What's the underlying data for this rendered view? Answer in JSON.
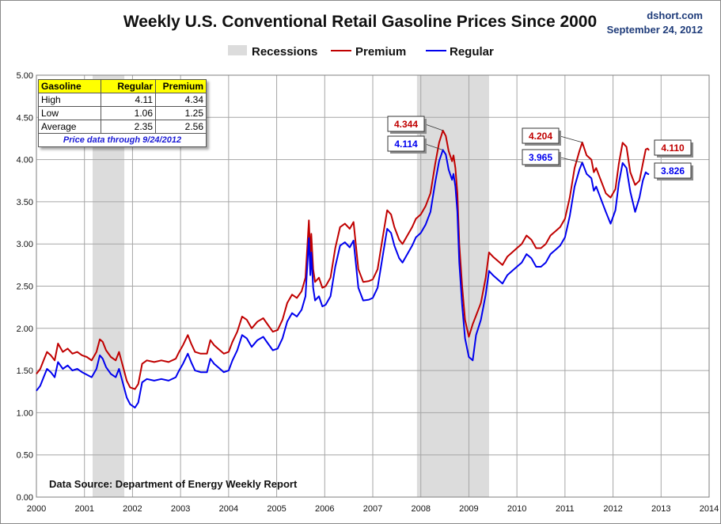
{
  "title": "Weekly U.S. Conventional Retail Gasoline Prices Since 2000",
  "brand": {
    "site": "dshort.com",
    "date": "September 24, 2012"
  },
  "legend": {
    "recessions": "Recessions",
    "premium": "Premium",
    "regular": "Regular"
  },
  "source": "Data Source: Department of Energy Weekly Report",
  "colors": {
    "premium": "#c00000",
    "regular": "#0000ee",
    "recession": "#dcdcdc",
    "grid": "#a6a6a6"
  },
  "stats_table": {
    "headers": [
      "Gasoline",
      "Regular",
      "Premium"
    ],
    "rows": [
      {
        "label": "High",
        "regular": "4.11",
        "premium": "4.34"
      },
      {
        "label": "Low",
        "regular": "1.06",
        "premium": "1.25"
      },
      {
        "label": "Average",
        "regular": "2.35",
        "premium": "2.56"
      }
    ],
    "note": "Price data through 9/24/2012"
  },
  "chart_data": {
    "type": "line",
    "title": "Weekly U.S. Conventional Retail Gasoline Prices Since 2000",
    "xlabel": "",
    "ylabel": "",
    "xlim": [
      2000,
      2014
    ],
    "ylim": [
      0,
      5
    ],
    "x_ticks": [
      "2000",
      "2001",
      "2002",
      "2003",
      "2004",
      "2005",
      "2006",
      "2007",
      "2008",
      "2009",
      "2010",
      "2011",
      "2012",
      "2013",
      "2014"
    ],
    "y_ticks": [
      "0.00",
      "0.50",
      "1.00",
      "1.50",
      "2.00",
      "2.50",
      "3.00",
      "3.50",
      "4.00",
      "4.50",
      "5.00"
    ],
    "grid": true,
    "legend_position": "top-center",
    "recessions": [
      [
        2001.17,
        2001.83
      ],
      [
        2007.92,
        2009.42
      ]
    ],
    "series": [
      {
        "name": "Premium",
        "x": [
          2000,
          2000.08,
          2000.15,
          2000.22,
          2000.3,
          2000.38,
          2000.45,
          2000.55,
          2000.65,
          2000.75,
          2000.85,
          2000.95,
          2001.05,
          2001.15,
          2001.25,
          2001.32,
          2001.38,
          2001.45,
          2001.55,
          2001.65,
          2001.72,
          2001.8,
          2001.88,
          2001.95,
          2002.05,
          2002.12,
          2002.2,
          2002.3,
          2002.45,
          2002.6,
          2002.75,
          2002.9,
          2002.97,
          2003.05,
          2003.15,
          2003.22,
          2003.3,
          2003.42,
          2003.55,
          2003.62,
          2003.7,
          2003.8,
          2003.9,
          2004,
          2004.08,
          2004.18,
          2004.28,
          2004.38,
          2004.48,
          2004.6,
          2004.72,
          2004.82,
          2004.92,
          2005.02,
          2005.12,
          2005.22,
          2005.32,
          2005.42,
          2005.52,
          2005.6,
          2005.67,
          2005.7,
          2005.72,
          2005.76,
          2005.8,
          2005.88,
          2005.95,
          2006.02,
          2006.12,
          2006.22,
          2006.32,
          2006.42,
          2006.52,
          2006.6,
          2006.7,
          2006.8,
          2006.92,
          2007,
          2007.1,
          2007.2,
          2007.3,
          2007.38,
          2007.45,
          2007.55,
          2007.62,
          2007.72,
          2007.82,
          2007.9,
          2008,
          2008.1,
          2008.2,
          2008.3,
          2008.38,
          2008.46,
          2008.52,
          2008.58,
          2008.65,
          2008.68,
          2008.72,
          2008.76,
          2008.8,
          2008.86,
          2008.92,
          2009,
          2009.08,
          2009.15,
          2009.25,
          2009.35,
          2009.42,
          2009.5,
          2009.6,
          2009.7,
          2009.8,
          2009.9,
          2010,
          2010.1,
          2010.2,
          2010.3,
          2010.4,
          2010.5,
          2010.6,
          2010.7,
          2010.8,
          2010.9,
          2011,
          2011.1,
          2011.2,
          2011.3,
          2011.36,
          2011.45,
          2011.55,
          2011.6,
          2011.65,
          2011.75,
          2011.85,
          2011.95,
          2012.05,
          2012.12,
          2012.2,
          2012.28,
          2012.36,
          2012.46,
          2012.55,
          2012.62,
          2012.68,
          2012.72,
          2012.75
        ],
        "values": [
          1.46,
          1.52,
          1.62,
          1.72,
          1.68,
          1.62,
          1.82,
          1.72,
          1.76,
          1.7,
          1.72,
          1.68,
          1.66,
          1.62,
          1.72,
          1.87,
          1.84,
          1.74,
          1.66,
          1.62,
          1.72,
          1.55,
          1.38,
          1.3,
          1.28,
          1.34,
          1.58,
          1.62,
          1.6,
          1.62,
          1.6,
          1.64,
          1.72,
          1.8,
          1.92,
          1.82,
          1.72,
          1.7,
          1.7,
          1.86,
          1.8,
          1.75,
          1.7,
          1.72,
          1.84,
          1.96,
          2.14,
          2.1,
          2.0,
          2.08,
          2.12,
          2.04,
          1.96,
          1.98,
          2.1,
          2.3,
          2.4,
          2.36,
          2.44,
          2.6,
          3.28,
          2.85,
          3.12,
          2.7,
          2.55,
          2.6,
          2.48,
          2.5,
          2.6,
          2.95,
          3.2,
          3.24,
          3.18,
          3.26,
          2.7,
          2.55,
          2.56,
          2.58,
          2.7,
          3.05,
          3.4,
          3.35,
          3.2,
          3.05,
          3.0,
          3.1,
          3.2,
          3.3,
          3.35,
          3.45,
          3.6,
          3.95,
          4.2,
          4.344,
          4.28,
          4.1,
          3.98,
          4.05,
          3.9,
          3.6,
          3.0,
          2.5,
          2.1,
          1.9,
          2.05,
          2.15,
          2.3,
          2.6,
          2.9,
          2.85,
          2.8,
          2.75,
          2.85,
          2.9,
          2.95,
          3.0,
          3.1,
          3.05,
          2.95,
          2.95,
          3.0,
          3.1,
          3.15,
          3.2,
          3.3,
          3.55,
          3.9,
          4.1,
          4.204,
          4.05,
          4.0,
          3.85,
          3.9,
          3.75,
          3.6,
          3.55,
          3.65,
          3.95,
          4.2,
          4.15,
          3.85,
          3.7,
          3.75,
          3.95,
          4.12,
          4.13,
          4.11
        ]
      },
      {
        "name": "Regular",
        "x": [
          2000,
          2000.08,
          2000.15,
          2000.22,
          2000.3,
          2000.38,
          2000.45,
          2000.55,
          2000.65,
          2000.75,
          2000.85,
          2000.95,
          2001.05,
          2001.15,
          2001.25,
          2001.32,
          2001.38,
          2001.45,
          2001.55,
          2001.65,
          2001.72,
          2001.8,
          2001.88,
          2001.95,
          2002.05,
          2002.12,
          2002.2,
          2002.3,
          2002.45,
          2002.6,
          2002.75,
          2002.9,
          2002.97,
          2003.05,
          2003.15,
          2003.22,
          2003.3,
          2003.42,
          2003.55,
          2003.62,
          2003.7,
          2003.8,
          2003.9,
          2004,
          2004.08,
          2004.18,
          2004.28,
          2004.38,
          2004.48,
          2004.6,
          2004.72,
          2004.82,
          2004.92,
          2005.02,
          2005.12,
          2005.22,
          2005.32,
          2005.42,
          2005.52,
          2005.6,
          2005.67,
          2005.7,
          2005.72,
          2005.76,
          2005.8,
          2005.88,
          2005.95,
          2006.02,
          2006.12,
          2006.22,
          2006.32,
          2006.42,
          2006.52,
          2006.6,
          2006.7,
          2006.8,
          2006.92,
          2007,
          2007.1,
          2007.2,
          2007.3,
          2007.38,
          2007.45,
          2007.55,
          2007.62,
          2007.72,
          2007.82,
          2007.9,
          2008,
          2008.1,
          2008.2,
          2008.3,
          2008.38,
          2008.46,
          2008.52,
          2008.58,
          2008.65,
          2008.68,
          2008.72,
          2008.76,
          2008.8,
          2008.86,
          2008.92,
          2009,
          2009.08,
          2009.15,
          2009.25,
          2009.35,
          2009.42,
          2009.5,
          2009.6,
          2009.7,
          2009.8,
          2009.9,
          2010,
          2010.1,
          2010.2,
          2010.3,
          2010.4,
          2010.5,
          2010.6,
          2010.7,
          2010.8,
          2010.9,
          2011,
          2011.1,
          2011.2,
          2011.3,
          2011.36,
          2011.45,
          2011.55,
          2011.6,
          2011.65,
          2011.75,
          2011.85,
          2011.95,
          2012.05,
          2012.12,
          2012.2,
          2012.28,
          2012.36,
          2012.46,
          2012.55,
          2012.62,
          2012.68,
          2012.72,
          2012.75
        ],
        "values": [
          1.26,
          1.32,
          1.42,
          1.52,
          1.48,
          1.42,
          1.6,
          1.52,
          1.56,
          1.5,
          1.52,
          1.48,
          1.45,
          1.42,
          1.52,
          1.68,
          1.64,
          1.54,
          1.46,
          1.42,
          1.52,
          1.35,
          1.18,
          1.1,
          1.06,
          1.12,
          1.36,
          1.4,
          1.38,
          1.4,
          1.38,
          1.42,
          1.5,
          1.58,
          1.7,
          1.6,
          1.5,
          1.48,
          1.48,
          1.64,
          1.58,
          1.53,
          1.48,
          1.5,
          1.62,
          1.74,
          1.92,
          1.88,
          1.78,
          1.86,
          1.9,
          1.82,
          1.74,
          1.76,
          1.88,
          2.08,
          2.18,
          2.14,
          2.22,
          2.38,
          3.07,
          2.63,
          2.9,
          2.48,
          2.33,
          2.38,
          2.26,
          2.28,
          2.38,
          2.73,
          2.98,
          3.02,
          2.96,
          3.04,
          2.48,
          2.33,
          2.34,
          2.36,
          2.48,
          2.83,
          3.18,
          3.13,
          2.98,
          2.83,
          2.78,
          2.88,
          2.98,
          3.08,
          3.13,
          3.23,
          3.38,
          3.73,
          3.98,
          4.114,
          4.06,
          3.88,
          3.76,
          3.83,
          3.68,
          3.38,
          2.78,
          2.28,
          1.88,
          1.66,
          1.62,
          1.92,
          2.1,
          2.4,
          2.68,
          2.63,
          2.58,
          2.53,
          2.63,
          2.68,
          2.73,
          2.78,
          2.88,
          2.83,
          2.73,
          2.73,
          2.78,
          2.88,
          2.93,
          2.98,
          3.08,
          3.33,
          3.68,
          3.88,
          3.965,
          3.83,
          3.78,
          3.63,
          3.68,
          3.53,
          3.38,
          3.24,
          3.4,
          3.72,
          3.96,
          3.9,
          3.62,
          3.38,
          3.55,
          3.75,
          3.85,
          3.83,
          3.826
        ]
      }
    ],
    "annotations": [
      {
        "series": "Premium",
        "label": "4.344",
        "x": 2008.46,
        "y": 4.344
      },
      {
        "series": "Regular",
        "label": "4.114",
        "x": 2008.46,
        "y": 4.114
      },
      {
        "series": "Premium",
        "label": "4.204",
        "x": 2011.36,
        "y": 4.204
      },
      {
        "series": "Regular",
        "label": "3.965",
        "x": 2011.36,
        "y": 3.965
      },
      {
        "series": "Premium",
        "label": "4.110",
        "x": 2012.75,
        "y": 4.11
      },
      {
        "series": "Regular",
        "label": "3.826",
        "x": 2012.75,
        "y": 3.826
      }
    ]
  }
}
